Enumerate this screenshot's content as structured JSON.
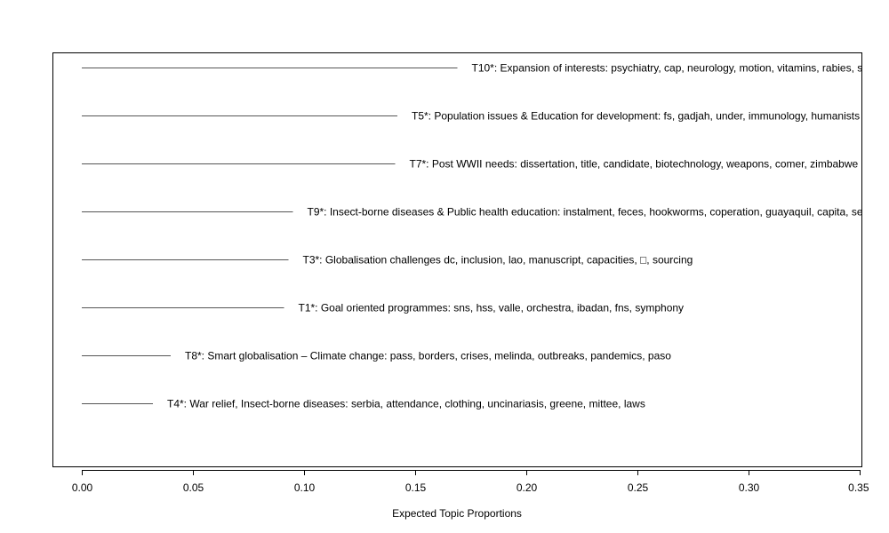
{
  "chart_data": {
    "type": "bar",
    "orientation": "horizontal",
    "style": "segments",
    "xlabel": "Expected Topic Proportions",
    "xlim": [
      0.0,
      0.35
    ],
    "x_ticks": [
      0.0,
      0.05,
      0.1,
      0.15,
      0.2,
      0.25,
      0.3,
      0.35
    ],
    "x_tick_labels": [
      "0.00",
      "0.05",
      "0.10",
      "0.15",
      "0.20",
      "0.25",
      "0.30",
      "0.35"
    ],
    "grid": false,
    "legend": "none",
    "topics": [
      {
        "label": "T10*: Expansion of interests: psychiatry, cap, neurology, motion, vitamins, rabies, s",
        "value": 0.169
      },
      {
        "label": "T5*: Population issues & Education for development: fs, gadjah, under, immunology, humanists",
        "value": 0.142
      },
      {
        "label": "T7*: Post WWII needs: dissertation, title, candidate, biotechnology, weapons, comer, zimbabwe",
        "value": 0.141
      },
      {
        "label": "T9*: Insect-borne diseases & Public health education: instalment, feces, hookworms, coperation, guayaquil, capita, se",
        "value": 0.095
      },
      {
        "label": "T3*: Globalisation challenges dc, inclusion, lao, manuscript, capacities, □, sourcing",
        "value": 0.093
      },
      {
        "label": "T1*: Goal oriented programmes: sns, hss, valle, orchestra, ibadan, fns, symphony",
        "value": 0.091
      },
      {
        "label": "T8*: Smart globalisation – Climate change: pass, borders, crises, melinda, outbreaks, pandemics, paso",
        "value": 0.04
      },
      {
        "label": "T4*: War relief, Insect-borne diseases: serbia, attendance, clothing, uncinariasis, greene, mittee, laws",
        "value": 0.032
      }
    ],
    "colors": {
      "line": "#555555",
      "axis": "#000000",
      "text": "#000000"
    }
  }
}
